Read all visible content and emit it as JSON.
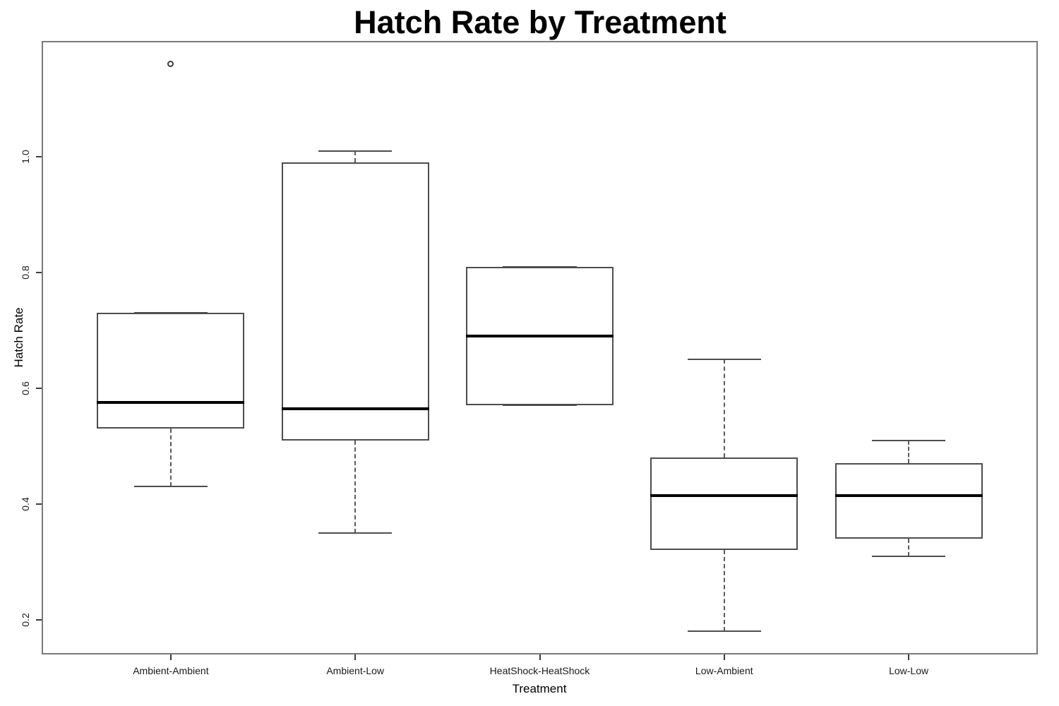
{
  "chart_data": {
    "type": "boxplot",
    "title": "Hatch Rate by Treatment",
    "xlabel": "Treatment",
    "ylabel": "Hatch Rate",
    "ylim": [
      0.14,
      1.2
    ],
    "yticks": [
      "0.2",
      "0.4",
      "0.6",
      "0.8",
      "1.0"
    ],
    "grid": false,
    "legend": "none",
    "categories": [
      "Ambient-Ambient",
      "Ambient-Low",
      "HeatShock-HeatShock",
      "Low-Ambient",
      "Low-Low"
    ],
    "series": [
      {
        "category": "Ambient-Ambient",
        "whisker_low": 0.43,
        "q1": 0.53,
        "median": 0.575,
        "q3": 0.73,
        "whisker_high": 0.73,
        "outliers": [
          1.16
        ]
      },
      {
        "category": "Ambient-Low",
        "whisker_low": 0.35,
        "q1": 0.51,
        "median": 0.565,
        "q3": 0.99,
        "whisker_high": 1.01,
        "outliers": []
      },
      {
        "category": "HeatShock-HeatShock",
        "whisker_low": 0.57,
        "q1": 0.57,
        "median": 0.69,
        "q3": 0.81,
        "whisker_high": 0.81,
        "outliers": []
      },
      {
        "category": "Low-Ambient",
        "whisker_low": 0.18,
        "q1": 0.32,
        "median": 0.415,
        "q3": 0.48,
        "whisker_high": 0.65,
        "outliers": []
      },
      {
        "category": "Low-Low",
        "whisker_low": 0.31,
        "q1": 0.34,
        "median": 0.415,
        "q3": 0.47,
        "whisker_high": 0.51,
        "outliers": []
      }
    ]
  }
}
